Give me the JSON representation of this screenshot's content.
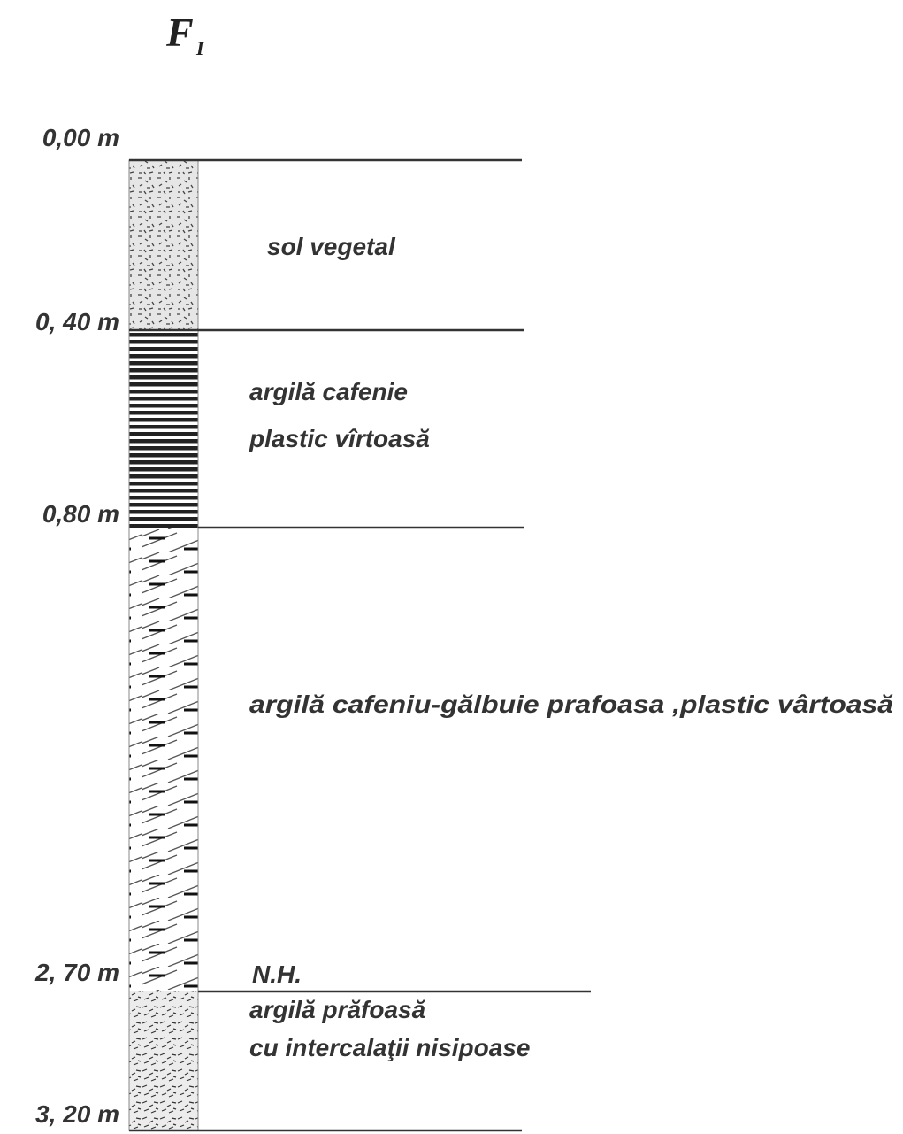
{
  "title": {
    "main": "F",
    "subscript": "I"
  },
  "depths": [
    "0,00 m",
    "0, 40 m",
    "0,80 m",
    "2, 70 m",
    "3, 20 m"
  ],
  "layers": [
    {
      "description": [
        "sol vegetal"
      ]
    },
    {
      "description": [
        "argilă cafenie",
        "plastic vîrtoasă"
      ]
    },
    {
      "description": [
        "argilă cafeniu-gălbuie prafoasa ,plastic vârtoasă"
      ]
    },
    {
      "description": [
        "argilă prăfoasă",
        "cu intercalaţii nisipoase"
      ]
    }
  ],
  "water_level": "N.H."
}
